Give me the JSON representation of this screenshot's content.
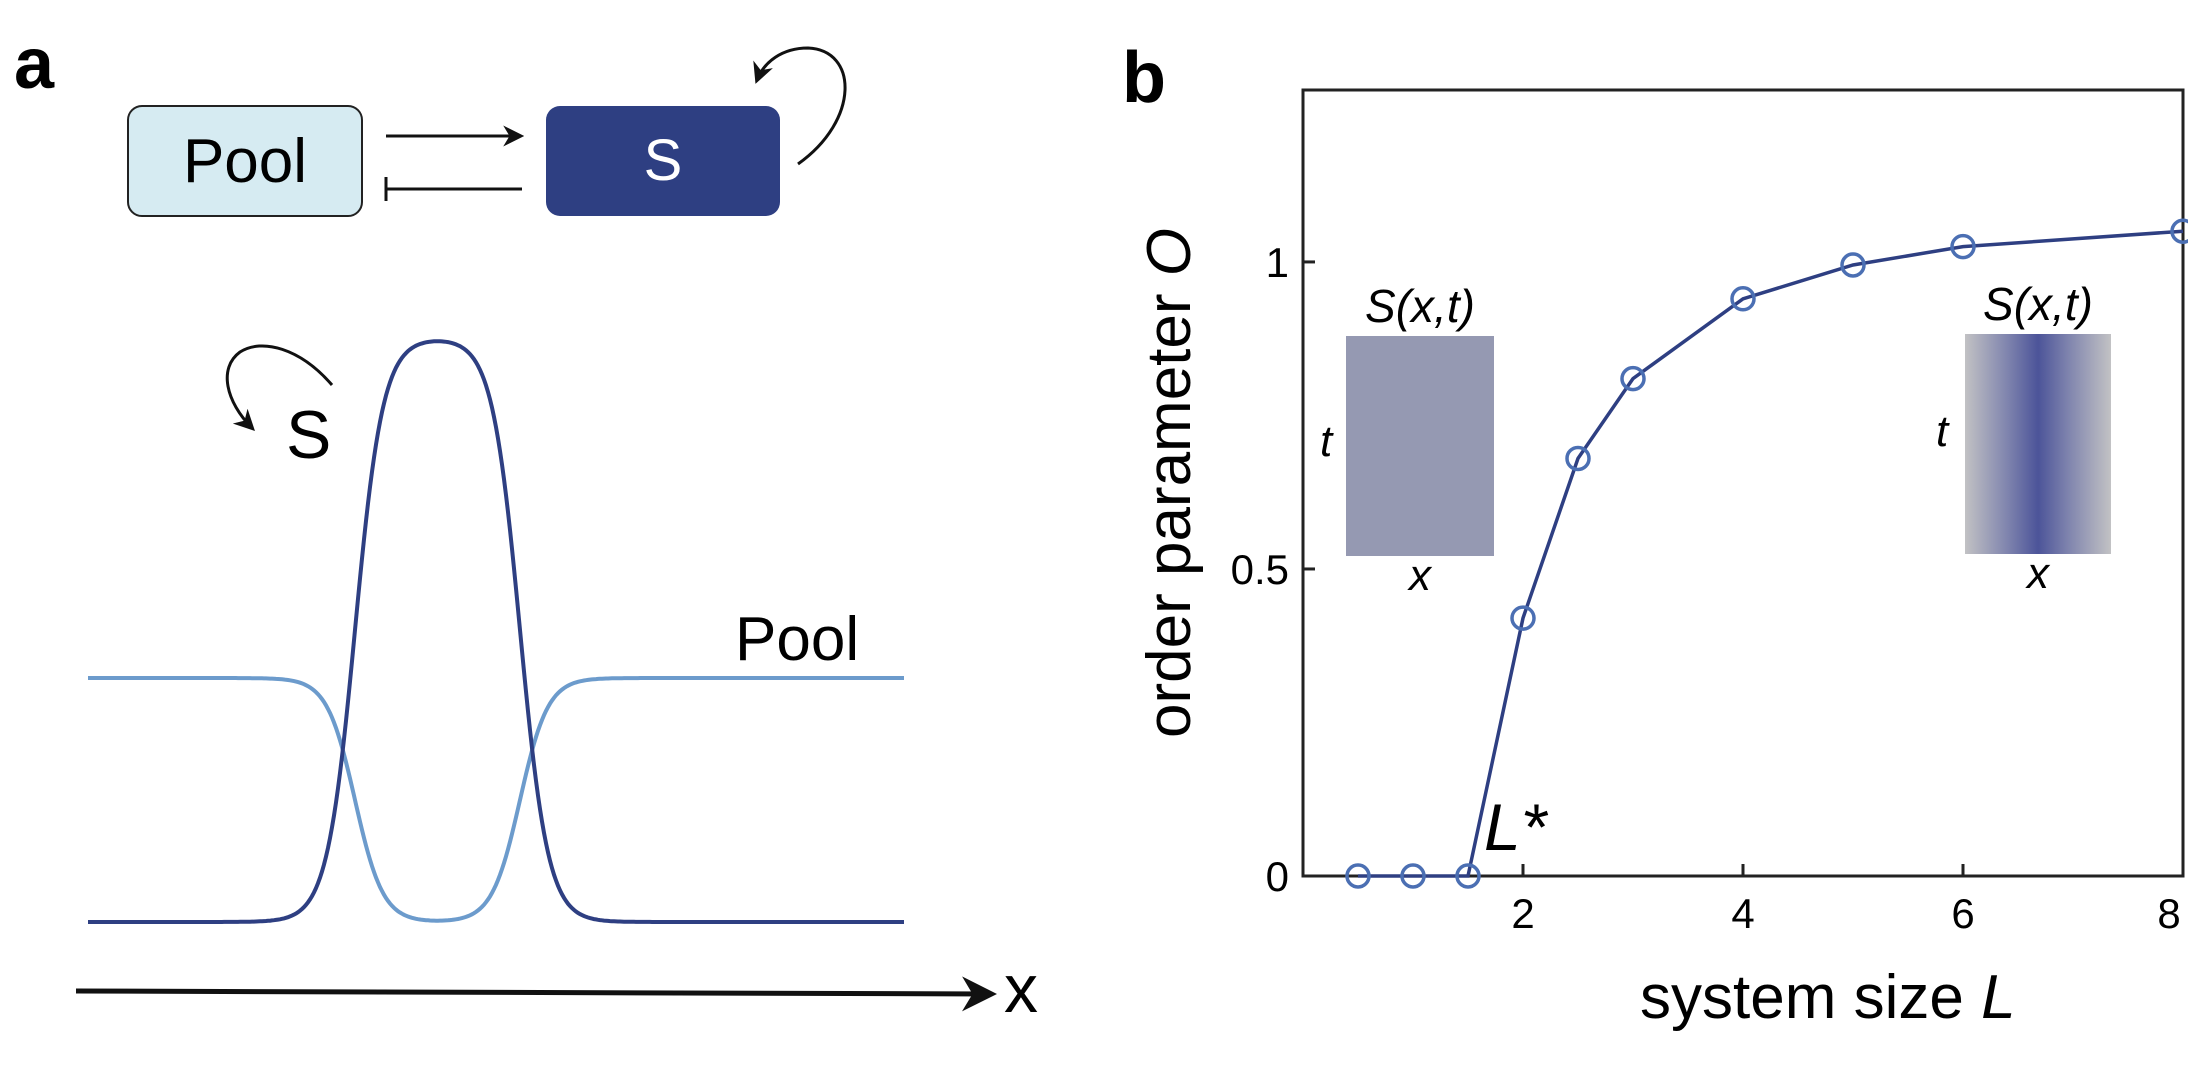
{
  "panel_a": {
    "label": "a",
    "diagram": {
      "pool_box": "Pool",
      "s_box": "S"
    },
    "profile": {
      "s_label": "S",
      "pool_label": "Pool",
      "x_label": "x"
    }
  },
  "panel_b": {
    "label": "b",
    "threshold_label": "L*",
    "inset_left": {
      "title": "S(x,t)",
      "x_label": "x",
      "y_label": "t"
    },
    "inset_right": {
      "title": "S(x,t)",
      "x_label": "x",
      "y_label": "t"
    }
  },
  "colors": {
    "pool_fill": "#d6ebf2",
    "s_fill": "#2e3f82",
    "s_curve": "#2e3f82",
    "pool_curve": "#6c9bcc",
    "data_line": "#2e3f82",
    "data_marker": "#4b6fb3",
    "inset_uniform": "#9599b2",
    "inset_center": "#4c5499",
    "inset_edge": "#c2c2c4"
  },
  "chart_data": {
    "type": "line",
    "xlabel": "system size L",
    "ylabel": "order parameter O",
    "xlim": [
      0,
      8
    ],
    "ylim": [
      0,
      1.28
    ],
    "xticks": [
      "2",
      "4",
      "6",
      "8"
    ],
    "yticks": [
      "0",
      "0.5",
      "1"
    ],
    "series": [
      {
        "x": [
          0.5,
          1.0,
          1.5,
          2.0,
          2.5,
          3.0,
          4.0,
          5.0,
          6.0,
          8.0
        ],
        "values": [
          0,
          0,
          0,
          0.42,
          0.68,
          0.81,
          0.94,
          0.995,
          1.025,
          1.05
        ]
      }
    ]
  }
}
